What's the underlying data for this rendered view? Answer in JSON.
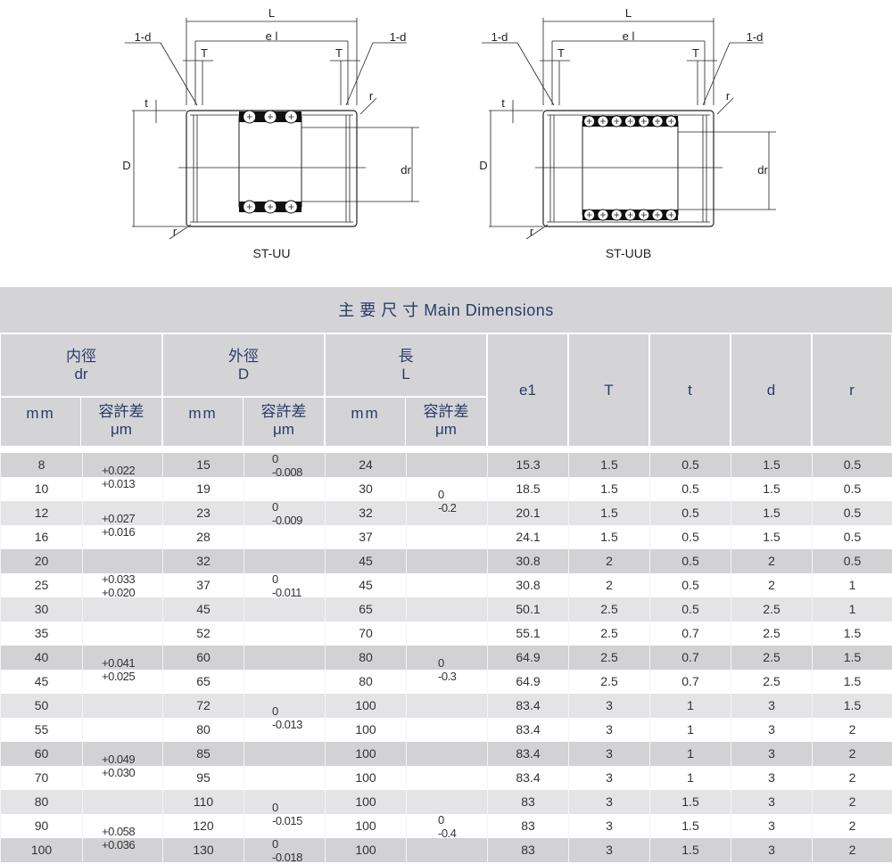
{
  "diagrams": [
    {
      "caption": "ST-UU",
      "labels": {
        "length": "L",
        "e1": "e l",
        "seal_left": "1-d",
        "seal_right": "1-d",
        "T": "T",
        "t": "t",
        "D": "D",
        "dr": "dr",
        "r": "r"
      },
      "balls_per_row": 3
    },
    {
      "caption": "ST-UUB",
      "labels": {
        "length": "L",
        "e1": "e l",
        "seal_left": "1-d",
        "seal_right": "1-d",
        "T": "T",
        "t": "t",
        "D": "D",
        "dr": "dr",
        "r": "r"
      },
      "balls_per_row": 7
    }
  ],
  "table": {
    "title": "主 要 尺 寸   Main Dimensions",
    "groups": [
      {
        "zh": "内徑",
        "en": "dr"
      },
      {
        "zh": "外徑",
        "en": "D"
      },
      {
        "zh": "長",
        "en": "L"
      }
    ],
    "sub_mm": "mm",
    "sub_tol_zh": "容許差",
    "sub_tol_unit": "μm",
    "single_headers": [
      "e1",
      "T",
      "t",
      "d",
      "r"
    ],
    "rows": [
      {
        "dr": "8",
        "D": "15",
        "L": "24",
        "e1": "15.3",
        "T": "1.5",
        "t": "0.5",
        "d": "1.5",
        "r": "0.5"
      },
      {
        "dr": "10",
        "D": "19",
        "L": "30",
        "e1": "18.5",
        "T": "1.5",
        "t": "0.5",
        "d": "1.5",
        "r": "0.5"
      },
      {
        "dr": "12",
        "D": "23",
        "L": "32",
        "e1": "20.1",
        "T": "1.5",
        "t": "0.5",
        "d": "1.5",
        "r": "0.5"
      },
      {
        "dr": "16",
        "D": "28",
        "L": "37",
        "e1": "24.1",
        "T": "1.5",
        "t": "0.5",
        "d": "1.5",
        "r": "0.5"
      },
      {
        "dr": "20",
        "D": "32",
        "L": "45",
        "e1": "30.8",
        "T": "2",
        "t": "0.5",
        "d": "2",
        "r": "0.5"
      },
      {
        "dr": "25",
        "D": "37",
        "L": "45",
        "e1": "30.8",
        "T": "2",
        "t": "0.5",
        "d": "2",
        "r": "1"
      },
      {
        "dr": "30",
        "D": "45",
        "L": "65",
        "e1": "50.1",
        "T": "2.5",
        "t": "0.5",
        "d": "2.5",
        "r": "1"
      },
      {
        "dr": "35",
        "D": "52",
        "L": "70",
        "e1": "55.1",
        "T": "2.5",
        "t": "0.7",
        "d": "2.5",
        "r": "1.5"
      },
      {
        "dr": "40",
        "D": "60",
        "L": "80",
        "e1": "64.9",
        "T": "2.5",
        "t": "0.7",
        "d": "2.5",
        "r": "1.5"
      },
      {
        "dr": "45",
        "D": "65",
        "L": "80",
        "e1": "64.9",
        "T": "2.5",
        "t": "0.7",
        "d": "2.5",
        "r": "1.5"
      },
      {
        "dr": "50",
        "D": "72",
        "L": "100",
        "e1": "83.4",
        "T": "3",
        "t": "1",
        "d": "3",
        "r": "1.5"
      },
      {
        "dr": "55",
        "D": "80",
        "L": "100",
        "e1": "83.4",
        "T": "3",
        "t": "1",
        "d": "3",
        "r": "2"
      },
      {
        "dr": "60",
        "D": "85",
        "L": "100",
        "e1": "83.4",
        "T": "3",
        "t": "1",
        "d": "3",
        "r": "2"
      },
      {
        "dr": "70",
        "D": "95",
        "L": "100",
        "e1": "83.4",
        "T": "3",
        "t": "1",
        "d": "3",
        "r": "2"
      },
      {
        "dr": "80",
        "D": "110",
        "L": "100",
        "e1": "83",
        "T": "3",
        "t": "1.5",
        "d": "3",
        "r": "2"
      },
      {
        "dr": "90",
        "D": "120",
        "L": "100",
        "e1": "83",
        "T": "3",
        "t": "1.5",
        "d": "3",
        "r": "2"
      },
      {
        "dr": "100",
        "D": "130",
        "L": "100",
        "e1": "83",
        "T": "3",
        "t": "1.5",
        "d": "3",
        "r": "2"
      }
    ],
    "dr_tolerances": [
      {
        "rows": [
          0,
          1
        ],
        "upper": "+0.022",
        "lower": "+0.013"
      },
      {
        "rows": [
          2,
          3
        ],
        "upper": "+0.027",
        "lower": "+0.016"
      },
      {
        "rows": [
          4,
          6
        ],
        "upper": "+0.033",
        "lower": "+0.020"
      },
      {
        "rows": [
          7,
          10
        ],
        "upper": "+0.041",
        "lower": "+0.025"
      },
      {
        "rows": [
          11,
          14
        ],
        "upper": "+0.049",
        "lower": "+0.030"
      },
      {
        "rows": [
          15,
          16
        ],
        "upper": "+0.058",
        "lower": "+0.036"
      }
    ],
    "D_tolerances": [
      {
        "rows": [
          0,
          0
        ],
        "upper": "0",
        "lower": "-0.008"
      },
      {
        "rows": [
          1,
          3
        ],
        "upper": "0",
        "lower": "-0.009"
      },
      {
        "rows": [
          4,
          6
        ],
        "upper": "0",
        "lower": "-0.011"
      },
      {
        "rows": [
          9,
          12
        ],
        "upper": "0",
        "lower": "-0.013"
      },
      {
        "rows": [
          14,
          15
        ],
        "upper": "0",
        "lower": "-0.015"
      },
      {
        "rows": [
          16,
          16
        ],
        "upper": "0",
        "lower": "-0.018"
      }
    ],
    "L_tolerances": [
      {
        "rows": [
          0,
          3
        ],
        "upper": "0",
        "lower": "-0.2"
      },
      {
        "rows": [
          4,
          13
        ],
        "upper": "0",
        "lower": "-0.3"
      },
      {
        "rows": [
          14,
          16
        ],
        "upper": "0",
        "lower": "-0.4"
      }
    ]
  },
  "colors": {
    "header_bg": "#d4d4d6",
    "header_text": "#2b3a6b",
    "row_dark": "#d2d2d4",
    "row_light": "#e4e4e6",
    "row_white": "#ffffff"
  }
}
